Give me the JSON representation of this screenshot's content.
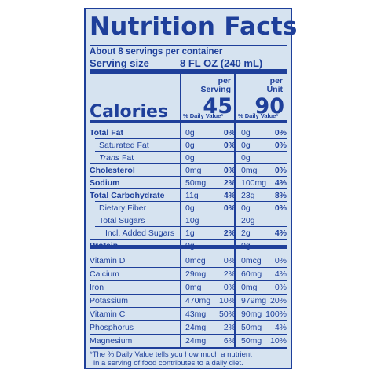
{
  "label": {
    "title": "Nutrition Facts",
    "servings_per_container": "About 8 servings per container",
    "serving_size_label": "Serving size",
    "serving_size_value": "8 FL OZ (240 mL)",
    "col_serving_header": [
      "per",
      "Serving"
    ],
    "col_unit_header": [
      "per",
      "Unit"
    ],
    "calories_label": "Calories",
    "calories_serving": "45",
    "calories_unit": "90",
    "dv_header": "% Daily Value*"
  },
  "nutrients": [
    {
      "name": "Total Fat",
      "style": "bold",
      "amt1": "0g",
      "pct1": "0%",
      "amt2": "0g",
      "pct2": "0%"
    },
    {
      "name": "Saturated Fat",
      "style": "i1",
      "amt1": "0g",
      "pct1": "0%",
      "amt2": "0g",
      "pct2": "0%"
    },
    {
      "name": "Trans Fat",
      "style": "i1",
      "italic_part": "Trans",
      "amt1": "0g",
      "pct1": "",
      "amt2": "0g",
      "pct2": ""
    },
    {
      "name": "Cholesterol",
      "style": "bold",
      "amt1": "0mg",
      "pct1": "0%",
      "amt2": "0mg",
      "pct2": "0%"
    },
    {
      "name": "Sodium",
      "style": "bold",
      "amt1": "50mg",
      "pct1": "2%",
      "amt2": "100mg",
      "pct2": "4%"
    },
    {
      "name": "Total Carbohydrate",
      "style": "bold",
      "amt1": "11g",
      "pct1": "4%",
      "amt2": "23g",
      "pct2": "8%"
    },
    {
      "name": "Dietary Fiber",
      "style": "i1",
      "amt1": "0g",
      "pct1": "0%",
      "amt2": "0g",
      "pct2": "0%"
    },
    {
      "name": "Total Sugars",
      "style": "i1",
      "amt1": "10g",
      "pct1": "",
      "amt2": "20g",
      "pct2": ""
    },
    {
      "name": "Incl. Added Sugars",
      "style": "i2",
      "amt1": "1g",
      "pct1": "2%",
      "amt2": "2g",
      "pct2": "4%"
    },
    {
      "name": "Protein",
      "style": "bold",
      "amt1": "0g",
      "pct1": "",
      "amt2": "0g",
      "pct2": ""
    }
  ],
  "vitamins": [
    {
      "name": "Vitamin D",
      "amt1": "0mcg",
      "pct1": "0%",
      "amt2": "0mcg",
      "pct2": "0%"
    },
    {
      "name": "Calcium",
      "amt1": "29mg",
      "pct1": "2%",
      "amt2": "60mg",
      "pct2": "4%"
    },
    {
      "name": "Iron",
      "amt1": "0mg",
      "pct1": "0%",
      "amt2": "0mg",
      "pct2": "0%"
    },
    {
      "name": "Potassium",
      "amt1": "470mg",
      "pct1": "10%",
      "amt2": "979mg",
      "pct2": "20%"
    },
    {
      "name": "Vitamin C",
      "amt1": "43mg",
      "pct1": "50%",
      "amt2": "90mg",
      "pct2": "100%"
    },
    {
      "name": "Phosphorus",
      "amt1": "24mg",
      "pct1": "2%",
      "amt2": "50mg",
      "pct2": "4%"
    },
    {
      "name": "Magnesium",
      "amt1": "24mg",
      "pct1": "6%",
      "amt2": "50mg",
      "pct2": "10%"
    }
  ],
  "footnote": [
    "*The % Daily Value tells you how much a nutrient",
    "in a serving of food contributes to a daily diet."
  ],
  "colors": {
    "ink": "#1e3f9a",
    "background": "#d6e3f0"
  }
}
